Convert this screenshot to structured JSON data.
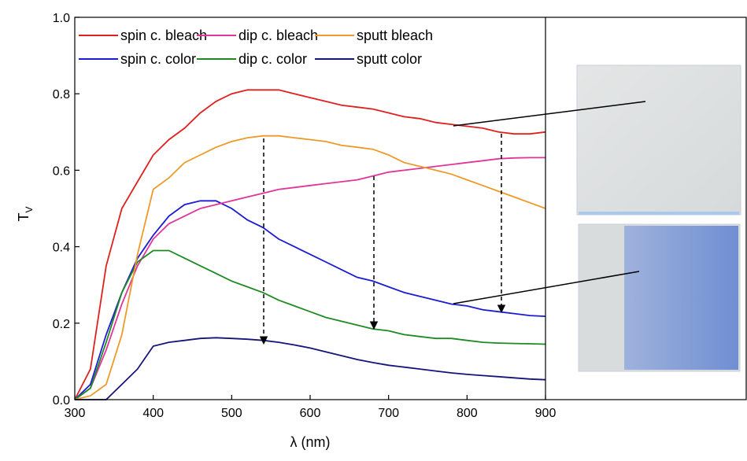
{
  "chart_data": {
    "type": "line",
    "xlabel": "λ (nm)",
    "ylabel_main": "T",
    "ylabel_sub": "V",
    "xlim": [
      300,
      900
    ],
    "ylim": [
      0,
      1
    ],
    "xticks": [
      300,
      400,
      500,
      600,
      700,
      800,
      900
    ],
    "yticks": [
      {
        "value": 0,
        "label": "0.0"
      },
      0.2,
      0.4,
      0.6,
      0.8,
      {
        "value": 1,
        "label": "1.0"
      }
    ],
    "x": [
      300,
      320,
      340,
      360,
      380,
      400,
      420,
      440,
      460,
      480,
      500,
      520,
      540,
      560,
      580,
      600,
      620,
      640,
      660,
      680,
      700,
      720,
      740,
      760,
      780,
      800,
      820,
      840,
      860,
      880,
      900
    ],
    "series": [
      {
        "name": "spin c. bleach",
        "color": "#e0201f",
        "values": [
          0,
          0.08,
          0.35,
          0.5,
          0.57,
          0.64,
          0.68,
          0.71,
          0.75,
          0.78,
          0.8,
          0.81,
          0.81,
          0.81,
          0.8,
          0.79,
          0.78,
          0.77,
          0.765,
          0.76,
          0.75,
          0.74,
          0.735,
          0.725,
          0.72,
          0.715,
          0.71,
          0.7,
          0.695,
          0.695,
          0.7
        ]
      },
      {
        "name": "spin c. color",
        "color": "#1b1bd6",
        "values": [
          0,
          0.04,
          0.17,
          0.28,
          0.37,
          0.43,
          0.48,
          0.51,
          0.52,
          0.52,
          0.5,
          0.47,
          0.45,
          0.42,
          0.4,
          0.38,
          0.36,
          0.34,
          0.32,
          0.31,
          0.295,
          0.28,
          0.27,
          0.26,
          0.25,
          0.245,
          0.235,
          0.23,
          0.225,
          0.22,
          0.218
        ]
      },
      {
        "name": "dip c. bleach",
        "color": "#e0359b",
        "values": [
          0,
          0.03,
          0.13,
          0.25,
          0.35,
          0.42,
          0.46,
          0.48,
          0.5,
          0.51,
          0.52,
          0.53,
          0.54,
          0.55,
          0.555,
          0.56,
          0.565,
          0.57,
          0.575,
          0.585,
          0.595,
          0.6,
          0.605,
          0.61,
          0.615,
          0.62,
          0.625,
          0.63,
          0.632,
          0.633,
          0.633
        ]
      },
      {
        "name": "dip c. color",
        "color": "#1f8a23",
        "values": [
          0,
          0.03,
          0.15,
          0.28,
          0.36,
          0.39,
          0.39,
          0.37,
          0.35,
          0.33,
          0.31,
          0.295,
          0.28,
          0.26,
          0.245,
          0.23,
          0.215,
          0.205,
          0.195,
          0.185,
          0.18,
          0.17,
          0.165,
          0.16,
          0.16,
          0.155,
          0.15,
          0.148,
          0.147,
          0.146,
          0.145
        ]
      },
      {
        "name": "sputt bleach",
        "color": "#ee9a2a",
        "values": [
          0,
          0.01,
          0.04,
          0.17,
          0.38,
          0.55,
          0.58,
          0.62,
          0.64,
          0.66,
          0.675,
          0.685,
          0.69,
          0.69,
          0.685,
          0.68,
          0.675,
          0.665,
          0.66,
          0.655,
          0.64,
          0.62,
          0.61,
          0.6,
          0.59,
          0.575,
          0.56,
          0.545,
          0.53,
          0.515,
          0.5
        ]
      },
      {
        "name": "sputt color",
        "color": "#14147a",
        "values": [
          0,
          0,
          0,
          0.04,
          0.08,
          0.14,
          0.15,
          0.155,
          0.16,
          0.162,
          0.16,
          0.158,
          0.155,
          0.15,
          0.143,
          0.135,
          0.125,
          0.115,
          0.105,
          0.097,
          0.09,
          0.085,
          0.08,
          0.075,
          0.07,
          0.066,
          0.063,
          0.06,
          0.057,
          0.054,
          0.052
        ]
      }
    ]
  }
}
